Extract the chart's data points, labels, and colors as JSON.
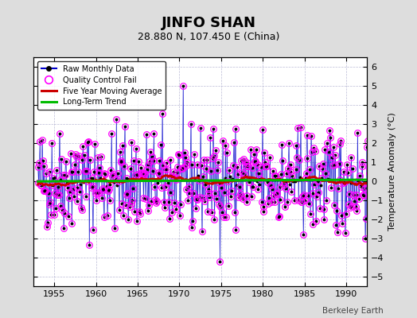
{
  "title": "JINFO SHAN",
  "subtitle": "28.880 N, 107.450 E (China)",
  "ylabel": "Temperature Anomaly (°C)",
  "credit": "Berkeley Earth",
  "ylim": [
    -5.5,
    6.5
  ],
  "xlim": [
    1952.5,
    1992.5
  ],
  "yticks": [
    -5,
    -4,
    -3,
    -2,
    -1,
    0,
    1,
    2,
    3,
    4,
    5,
    6
  ],
  "xticks": [
    1955,
    1960,
    1965,
    1970,
    1975,
    1980,
    1985,
    1990
  ],
  "line_color": "#0000cc",
  "dot_color": "#000000",
  "qc_color": "#ff00ff",
  "moving_avg_color": "#cc0000",
  "trend_color": "#00bb00",
  "bg_color": "#dddddd",
  "plot_bg_color": "#ffffff",
  "seed": 42
}
